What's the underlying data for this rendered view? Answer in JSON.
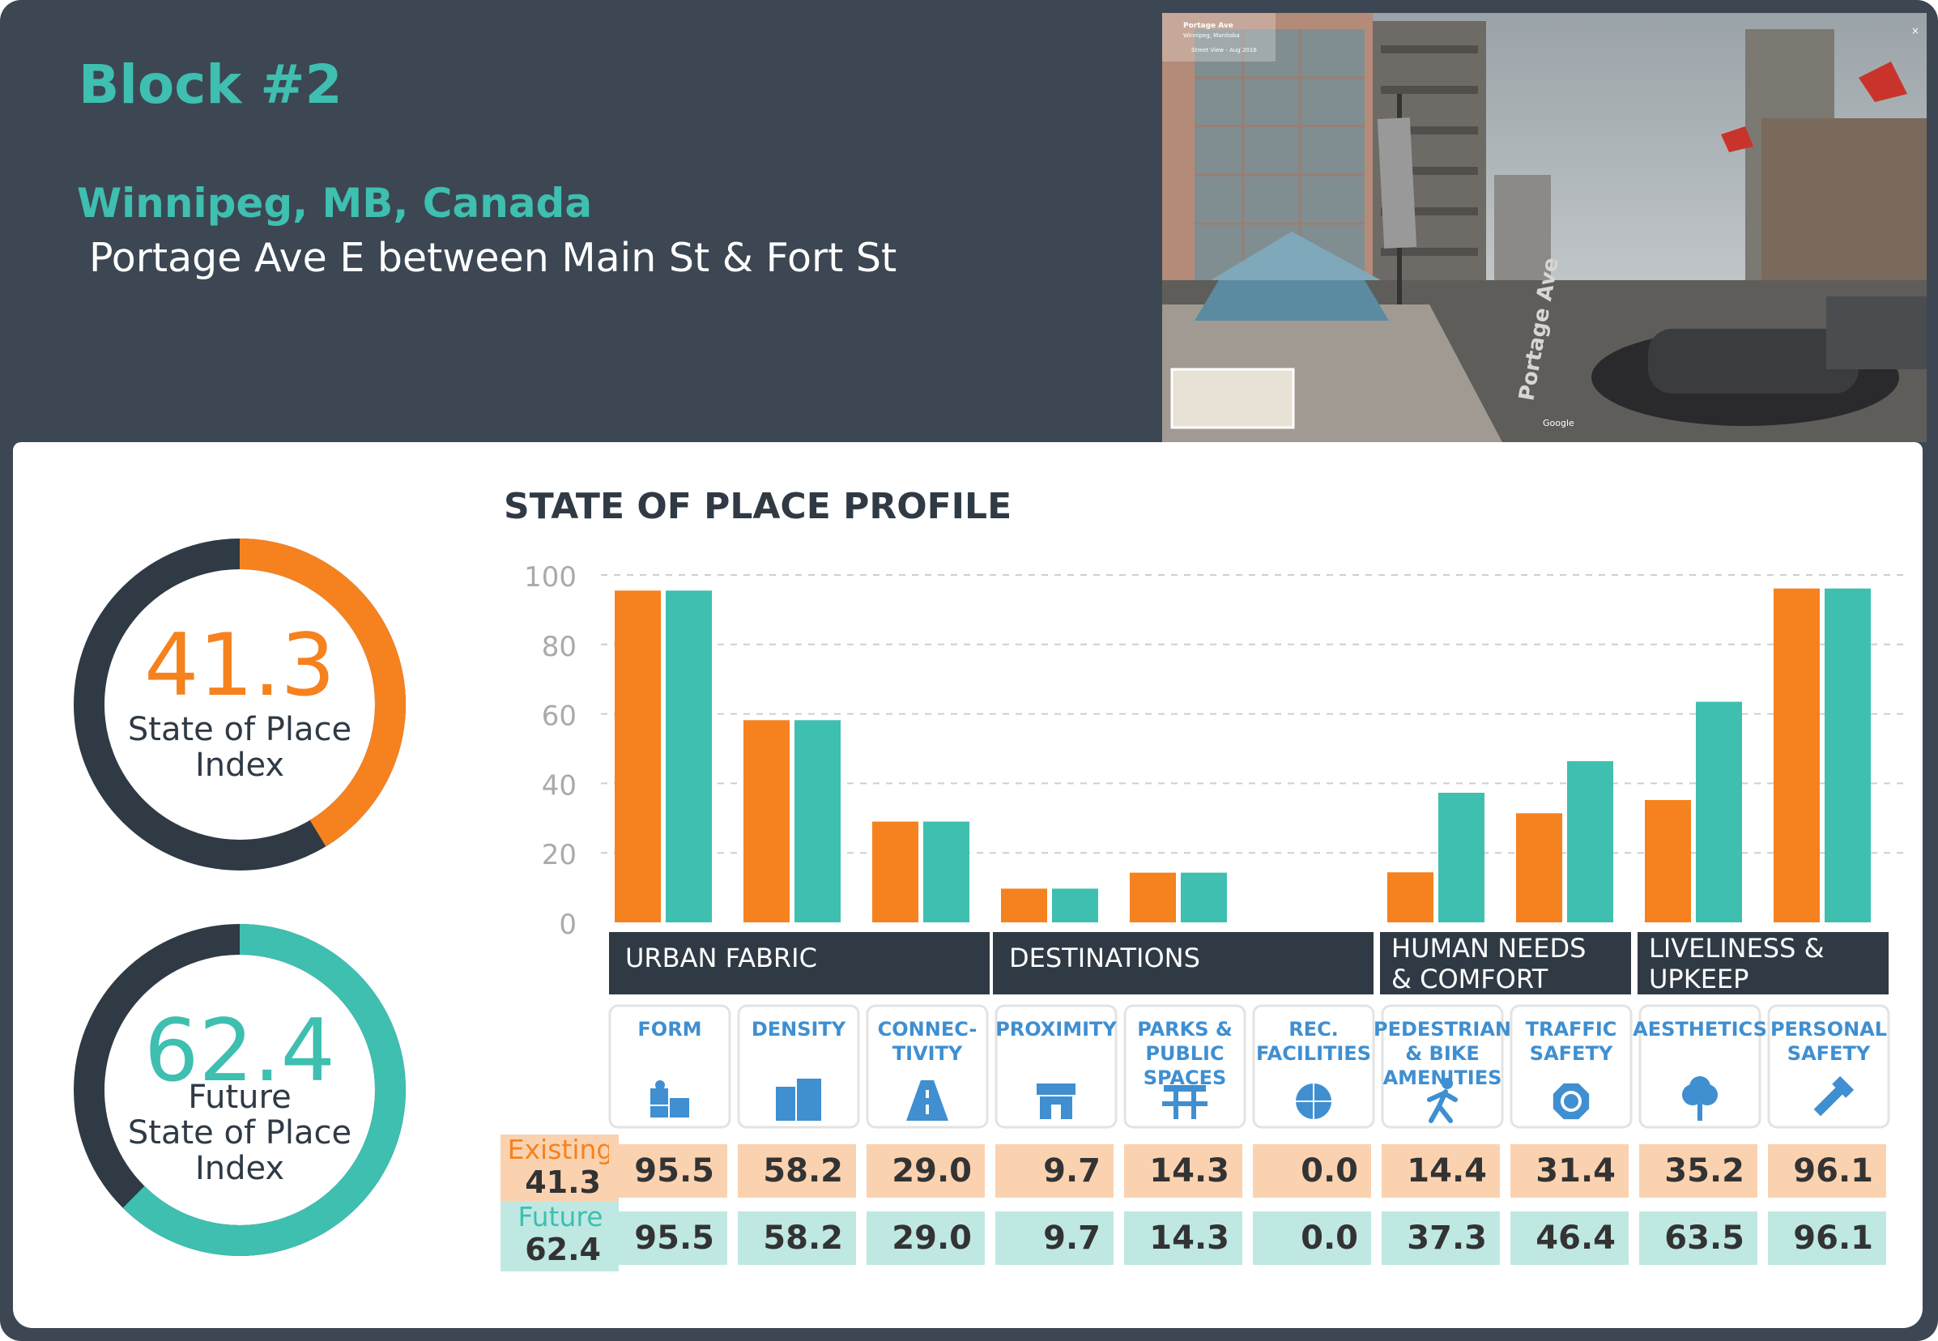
{
  "header": {
    "block_title": "Block #2",
    "city": "Winnipeg, MB, Canada",
    "street": "Portage Ave E between Main St & Fort St"
  },
  "photo": {
    "street_name": "Portage Ave",
    "city": "Winnipeg, Manitoba",
    "meta": "Street View - Aug 2016",
    "road_label": "Portage Ave",
    "brand": "Google"
  },
  "index": {
    "current_value": "41.3",
    "current_label_1": "State of Place",
    "current_label_2": "Index",
    "future_value": "62.4",
    "future_label_1": "Future",
    "future_label_2": "State of Place",
    "future_label_3": "Index",
    "current_fraction": 0.413,
    "future_fraction": 0.624
  },
  "colors": {
    "existing": "#f5821f",
    "future": "#3ebfb0",
    "dark": "#2f3a45",
    "existing_light": "#fbd2b0",
    "future_light": "#bfe8e3"
  },
  "chart_data": {
    "type": "bar",
    "title": "STATE OF PLACE PROFILE",
    "ylim": [
      0,
      100
    ],
    "yticks": [
      "0",
      "20",
      "40",
      "60",
      "80",
      "100"
    ],
    "categories": [
      "FORM",
      "DENSITY",
      "CONNEC-TIVITY",
      "PROXIMITY",
      "PARKS & PUBLIC SPACES",
      "REC. FACILITIES",
      "PEDESTRIAN & BIKE AMENITIES",
      "TRAFFIC SAFETY",
      "AESTHETICS",
      "PERSONAL SAFETY"
    ],
    "category_lines": [
      [
        "FORM"
      ],
      [
        "DENSITY"
      ],
      [
        "CONNEC-",
        "TIVITY"
      ],
      [
        "PROXIMITY"
      ],
      [
        "PARKS &",
        "PUBLIC",
        "SPACES"
      ],
      [
        "REC.",
        "FACILITIES"
      ],
      [
        "PEDESTRIAN",
        "& BIKE",
        "AMENITIES"
      ],
      [
        "TRAFFIC",
        "SAFETY"
      ],
      [
        "AESTHETICS"
      ],
      [
        "PERSONAL",
        "SAFETY"
      ]
    ],
    "icons": [
      "puzzle-icon",
      "buildings-icon",
      "road-icon",
      "storefront-icon",
      "picnic-table-icon",
      "basketball-icon",
      "walking-person-icon",
      "stop-sign-icon",
      "tree-icon",
      "flashlight-icon"
    ],
    "groups": [
      {
        "lines": [
          "URBAN FABRIC"
        ],
        "span": [
          0,
          2
        ]
      },
      {
        "lines": [
          "DESTINATIONS"
        ],
        "span": [
          3,
          5
        ]
      },
      {
        "lines": [
          "HUMAN NEEDS",
          "& COMFORT"
        ],
        "span": [
          6,
          7
        ]
      },
      {
        "lines": [
          "LIVELINESS &",
          "UPKEEP"
        ],
        "span": [
          8,
          9
        ]
      }
    ],
    "series": [
      {
        "name": "Existing",
        "total": "41.3",
        "values": [
          95.5,
          58.2,
          29.0,
          9.7,
          14.3,
          0.0,
          14.4,
          31.4,
          35.2,
          96.1
        ],
        "labels": [
          "95.5",
          "58.2",
          "29.0",
          "9.7",
          "14.3",
          "0.0",
          "14.4",
          "31.4",
          "35.2",
          "96.1"
        ]
      },
      {
        "name": "Future",
        "total": "62.4",
        "values": [
          95.5,
          58.2,
          29.0,
          9.7,
          14.3,
          0.0,
          37.3,
          46.4,
          63.5,
          96.1
        ],
        "labels": [
          "95.5",
          "58.2",
          "29.0",
          "9.7",
          "14.3",
          "0.0",
          "37.3",
          "46.4",
          "63.5",
          "96.1"
        ]
      }
    ]
  }
}
